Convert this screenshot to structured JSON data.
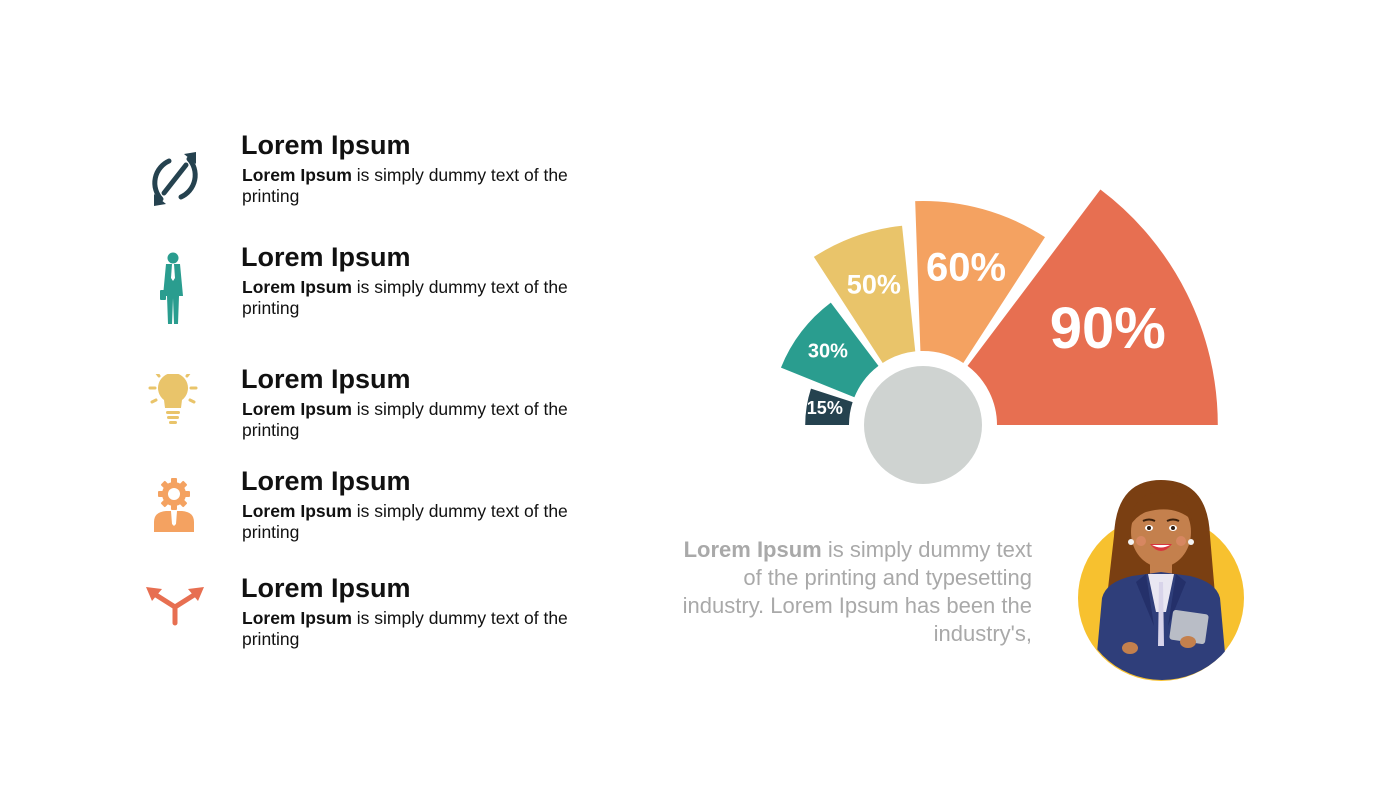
{
  "items": [
    {
      "title": "Lorem Ipsum",
      "desc_bold": "Lorem Ipsum",
      "desc_rest": " is simply dummy text of the printing",
      "icon": "sync-icon",
      "color": "#25424f"
    },
    {
      "title": "Lorem Ipsum",
      "desc_bold": "Lorem Ipsum",
      "desc_rest": " is simply dummy text of the printing",
      "icon": "businessman-icon",
      "color": "#2a9d8f"
    },
    {
      "title": "Lorem Ipsum",
      "desc_bold": "Lorem Ipsum",
      "desc_rest": " is simply dummy text of the printing",
      "icon": "lightbulb-icon",
      "color": "#e9c46a"
    },
    {
      "title": "Lorem Ipsum",
      "desc_bold": "Lorem Ipsum",
      "desc_rest": " is simply dummy text of the printing",
      "icon": "gear-person-icon",
      "color": "#f4a261"
    },
    {
      "title": "Lorem Ipsum",
      "desc_bold": "Lorem Ipsum",
      "desc_rest": " is simply dummy text of the printing",
      "icon": "split-arrows-icon",
      "color": "#e76f51"
    }
  ],
  "quote": {
    "bold": "Lorem Ipsum",
    "rest": " is simply dummy text of the printing and typesetting industry. Lorem Ipsum has been the industry's,"
  },
  "chart_data": {
    "type": "pie",
    "subtype": "radial-bar-semicircle",
    "categories": [
      "15%",
      "30%",
      "50%",
      "60%",
      "90%"
    ],
    "values": [
      15,
      30,
      50,
      60,
      90
    ],
    "colors": [
      "#25424f",
      "#2a9d8f",
      "#e9c46a",
      "#f4a261",
      "#e76f51"
    ],
    "center_color": "#cfd3d1"
  },
  "avatar": {
    "icon": "businesswoman-avatar-icon",
    "bg_color": "#f7c12f"
  }
}
